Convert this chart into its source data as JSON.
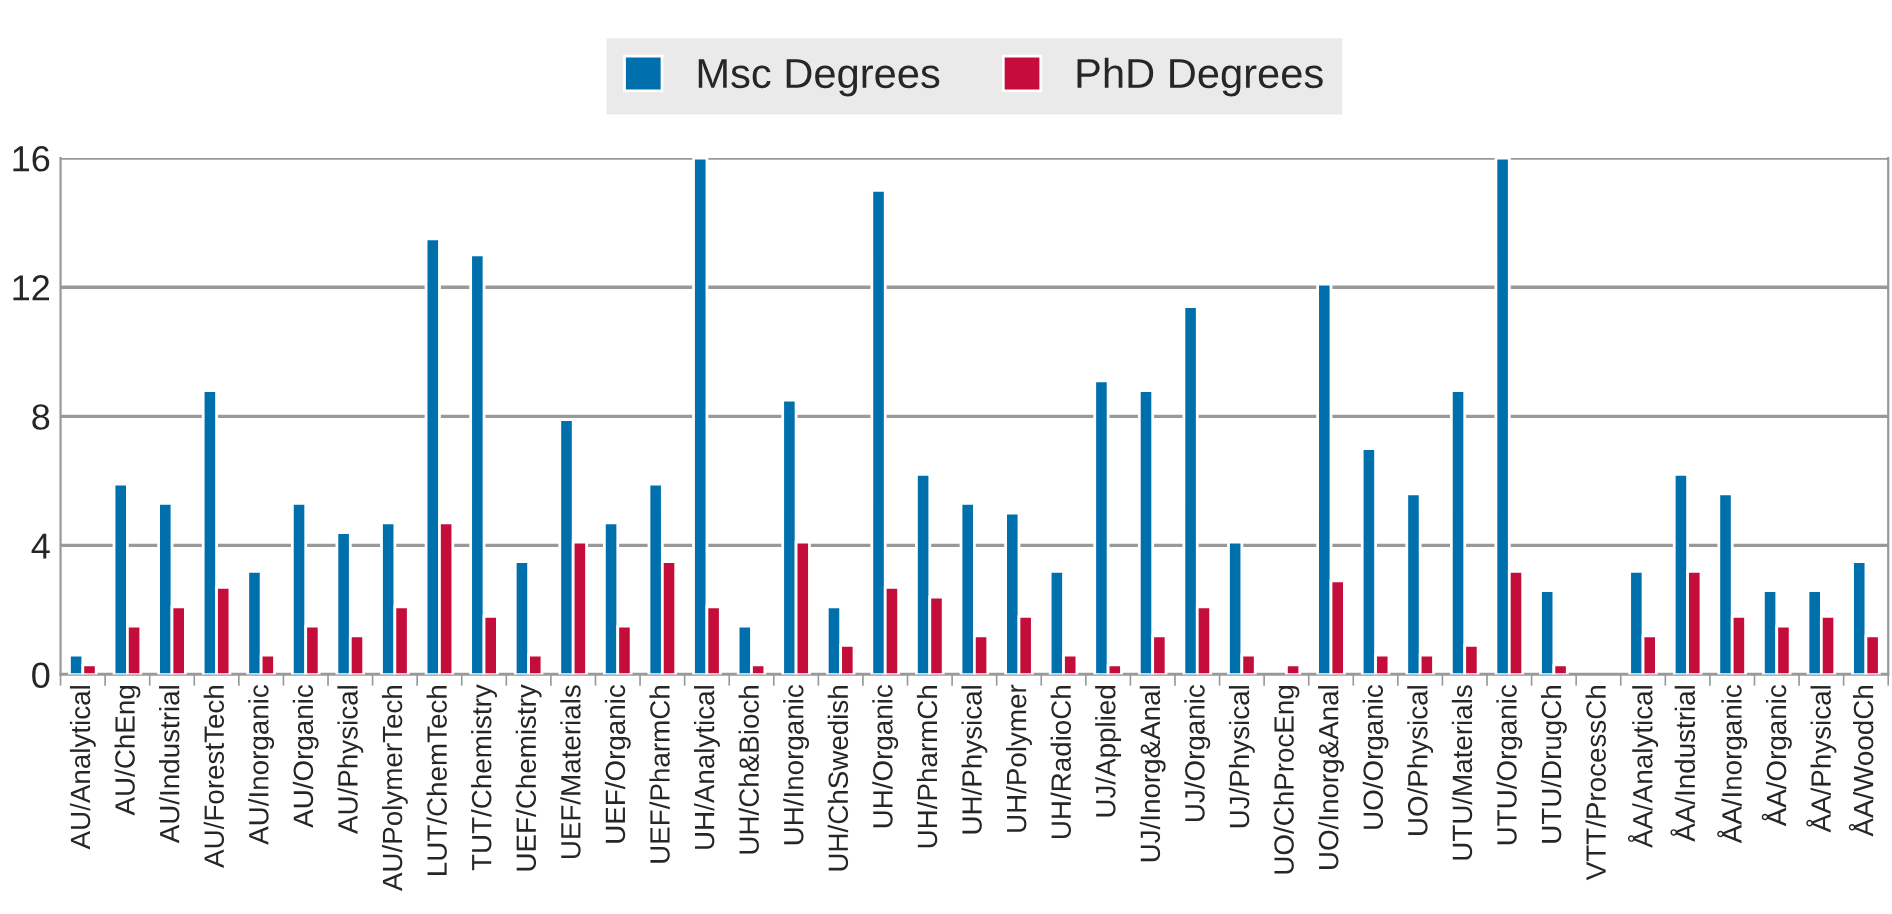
{
  "chart_data": {
    "type": "bar",
    "categories": [
      "AU/Analytical",
      "AU/ChEng",
      "AU/Industrial",
      "AU/ForestTech",
      "AU/Inorganic",
      "AU/Organic",
      "AU/Physical",
      "AU/PolymerTech",
      "LUT/ChemTech",
      "TUT/Chemistry",
      "UEF/Chemistry",
      "UEF/Materials",
      "UEF/Organic",
      "UEF/PharmCh",
      "UH/Analytical",
      "UH/Ch&Bioch",
      "UH/Inorganic",
      "UH/ChSwedish",
      "UH/Organic",
      "UH/PharmCh",
      "UH/Physical",
      "UH/Polymer",
      "UH/RadioCh",
      "UJ/Applied",
      "UJ/Inorg&Anal",
      "UJ/Organic",
      "UJ/Physical",
      "UO/ChProcEng",
      "UO/Inorg&Anal",
      "UO/Organic",
      "UO/Physical",
      "UTU/Materials",
      "UTU/Organic",
      "UTU/DrugCh",
      "VTT/ProcessCh",
      "ÅA/Analytical",
      "ÅA/Industrial",
      "ÅA/Inorganic",
      "ÅA/Organic",
      "ÅA/Physical",
      "ÅA/WoodCh"
    ],
    "series": [
      {
        "name": "Msc Degrees",
        "color": "#0070ad",
        "values": [
          0.6,
          5.9,
          5.3,
          8.8,
          3.2,
          5.3,
          4.4,
          4.7,
          13.5,
          13.0,
          3.5,
          7.9,
          4.7,
          5.9,
          16,
          1.5,
          8.5,
          2.1,
          15.0,
          6.2,
          5.3,
          5.0,
          3.2,
          9.1,
          8.8,
          11.4,
          4.1,
          null,
          12.1,
          7.0,
          5.6,
          8.8,
          16,
          2.6,
          null,
          3.2,
          6.2,
          5.6,
          2.6,
          2.6,
          3.5
        ]
      },
      {
        "name": "PhD Degrees",
        "color": "#c40d3a",
        "values": [
          0.3,
          1.5,
          2.1,
          2.7,
          0.6,
          1.5,
          1.2,
          2.1,
          4.7,
          1.8,
          0.6,
          4.1,
          1.5,
          3.5,
          2.1,
          0.3,
          4.1,
          0.9,
          2.7,
          2.4,
          1.2,
          1.8,
          0.6,
          0.3,
          1.2,
          2.1,
          0.6,
          0.3,
          2.9,
          0.6,
          0.6,
          0.9,
          3.2,
          0.3,
          null,
          1.2,
          3.2,
          1.8,
          1.5,
          1.8,
          1.2
        ]
      }
    ],
    "ylim": [
      0,
      16
    ],
    "yticks": [
      0,
      4,
      8,
      12,
      16
    ],
    "grid": "y",
    "legend": "top"
  }
}
